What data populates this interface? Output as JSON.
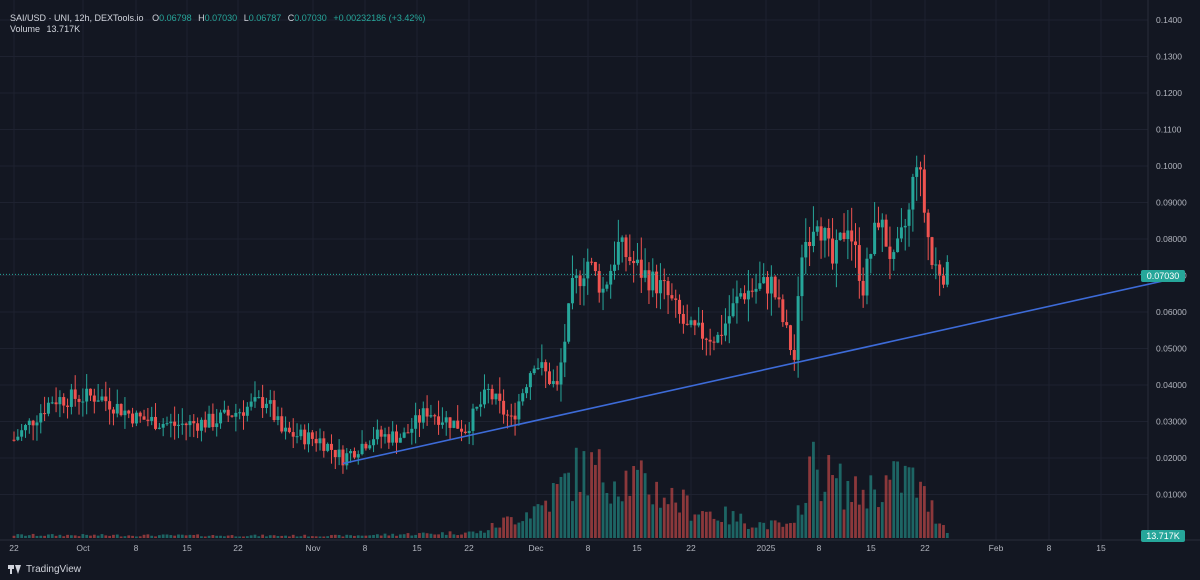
{
  "legend": {
    "symbol": "SAI/USD · UNI, 12h, DEXTools.io",
    "open_label": "O",
    "open": "0.06798",
    "high_label": "H",
    "high": "0.07030",
    "low_label": "L",
    "low": "0.06787",
    "close_label": "C",
    "close": "0.07030",
    "change": "+0.00232186 (+3.42%)",
    "volume_label": "Volume",
    "volume": "13.717K"
  },
  "price_axis_labels": [
    "0.1400",
    "0.1300",
    "0.1200",
    "0.1100",
    "0.1000",
    "0.09000",
    "0.08000",
    "0.07000",
    "0.06000",
    "0.05000",
    "0.04000",
    "0.03000",
    "0.02000",
    "0.01000"
  ],
  "current_price_badge": "0.07030",
  "volume_badge": "13.717K",
  "time_axis_labels": [
    "22",
    "Oct",
    "8",
    "15",
    "22",
    "Nov",
    "8",
    "15",
    "22",
    "Dec",
    "8",
    "15",
    "22",
    "2025",
    "8",
    "15",
    "22",
    "Feb",
    "8",
    "15"
  ],
  "footer": {
    "brand": "TradingView"
  },
  "colors": {
    "up": "#26a69a",
    "down": "#ef5350",
    "trendline": "#3d6bd8",
    "background": "#131722",
    "grid": "#1e2230"
  },
  "chart_data": {
    "type": "candlestick",
    "interval": "12h",
    "pair": "SAI/USD",
    "price_axis": {
      "min": 0,
      "max": 0.14,
      "scale": "linear"
    },
    "time_range": [
      "Sep 22",
      "Feb 22"
    ],
    "last_price": 0.0703,
    "trendline": {
      "from": [
        "Nov 4",
        0.0185
      ],
      "to": [
        "Feb 22",
        0.0698
      ]
    },
    "price_path": [
      [
        "Sep 22",
        0.025
      ],
      [
        "Sep 27",
        0.036
      ],
      [
        "Oct 3",
        0.037
      ],
      [
        "Oct 8",
        0.031
      ],
      [
        "Oct 13",
        0.029
      ],
      [
        "Oct 18",
        0.03
      ],
      [
        "Oct 25",
        0.036
      ],
      [
        "Oct 27",
        0.027
      ],
      [
        "Nov 1",
        0.025
      ],
      [
        "Nov 4",
        0.02
      ],
      [
        "Nov 8",
        0.026
      ],
      [
        "Nov 12",
        0.026
      ],
      [
        "Nov 15",
        0.033
      ],
      [
        "Nov 20",
        0.028
      ],
      [
        "Nov 23",
        0.038
      ],
      [
        "Nov 26",
        0.03
      ],
      [
        "Nov 29",
        0.047
      ],
      [
        "Dec 2",
        0.039
      ],
      [
        "Dec 4",
        0.066
      ],
      [
        "Dec 6",
        0.074
      ],
      [
        "Dec 8",
        0.066
      ],
      [
        "Dec 10",
        0.078
      ],
      [
        "Dec 13",
        0.071
      ],
      [
        "Dec 16",
        0.066
      ],
      [
        "Dec 19",
        0.055
      ],
      [
        "Dec 23",
        0.053
      ],
      [
        "Dec 26",
        0.065
      ],
      [
        "Dec 30",
        0.068
      ],
      [
        "Jan 1",
        0.054
      ],
      [
        "Jan 2",
        0.047
      ],
      [
        "Jan 3",
        0.077
      ],
      [
        "Jan 5",
        0.087
      ],
      [
        "Jan 7",
        0.073
      ],
      [
        "Jan 9",
        0.085
      ],
      [
        "Jan 11",
        0.067
      ],
      [
        "Jan 13",
        0.086
      ],
      [
        "Jan 15",
        0.073
      ],
      [
        "Jan 17",
        0.087
      ],
      [
        "Jan 18",
        0.103
      ],
      [
        "Jan 20",
        0.073
      ],
      [
        "Jan 22",
        0.0703
      ]
    ],
    "volume_path": [
      [
        "Sep 22",
        0.04
      ],
      [
        "Nov 4",
        0.03
      ],
      [
        "Nov 22",
        0.08
      ],
      [
        "Nov 30",
        0.45
      ],
      [
        "Dec 5",
        0.95
      ],
      [
        "Dec 12",
        0.8
      ],
      [
        "Dec 20",
        0.4
      ],
      [
        "Dec 28",
        0.2
      ],
      [
        "Jan 2",
        0.15
      ],
      [
        "Jan 4",
        1.0
      ],
      [
        "Jan 10",
        0.6
      ],
      [
        "Jan 17",
        0.85
      ],
      [
        "Jan 22",
        0.1
      ]
    ]
  }
}
